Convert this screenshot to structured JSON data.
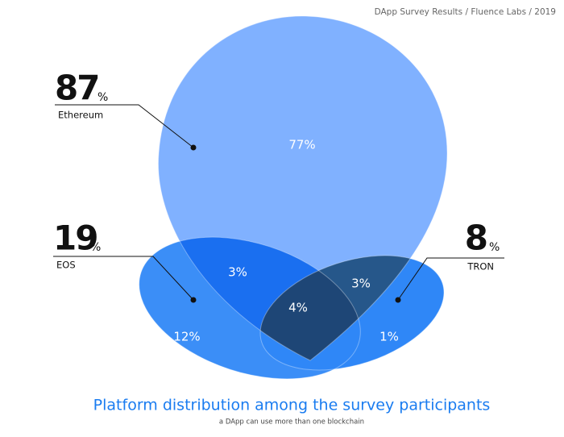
{
  "header": "DApp Survey Results / Fluence Labs / 2019",
  "chart_data": {
    "type": "venn",
    "title": "Platform distribution among the survey participants",
    "subtitle": "a DApp can use more than one blockchain",
    "unit": "%",
    "sets": [
      {
        "name": "Ethereum",
        "value": 87,
        "color": "#80b1ff"
      },
      {
        "name": "EOS",
        "value": 19,
        "color": "#3b8ef7"
      },
      {
        "name": "TRON",
        "value": 8,
        "color": "#2f87f7"
      }
    ],
    "regions": {
      "values": [
        77,
        3,
        3,
        4,
        12,
        1
      ],
      "value_labels": [
        "77%",
        "3%",
        "3%",
        "4%",
        "12%",
        "1%"
      ],
      "colors": [
        "#80b1ff",
        "#1a6ff0",
        "#26578a",
        "#1e4676",
        "#3b8ef7",
        "#2f87f7"
      ]
    }
  }
}
